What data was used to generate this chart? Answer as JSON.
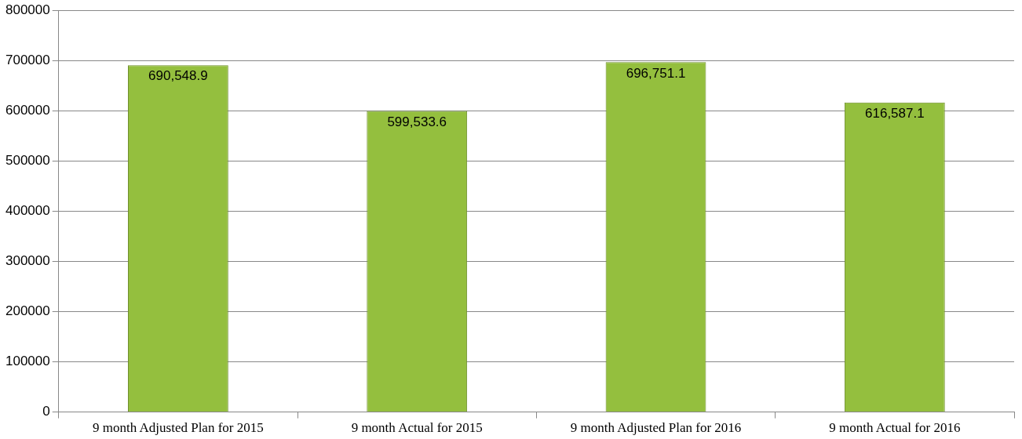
{
  "chart_data": {
    "type": "bar",
    "categories": [
      "9 month Adjusted Plan for 2015",
      "9 month Actual for 2015",
      "9 month Adjusted Plan for 2016",
      "9 month Actual for 2016"
    ],
    "values": [
      690548.9,
      599533.6,
      696751.1,
      616587.1
    ],
    "value_labels": [
      "690,548.9",
      "599,533.6",
      "696,751.1",
      "616,587.1"
    ],
    "color": "#94bf3e",
    "ylim": [
      0,
      800000
    ],
    "yticks": [
      0,
      100000,
      200000,
      300000,
      400000,
      500000,
      600000,
      700000,
      800000
    ],
    "grid": "y",
    "legend": false
  }
}
